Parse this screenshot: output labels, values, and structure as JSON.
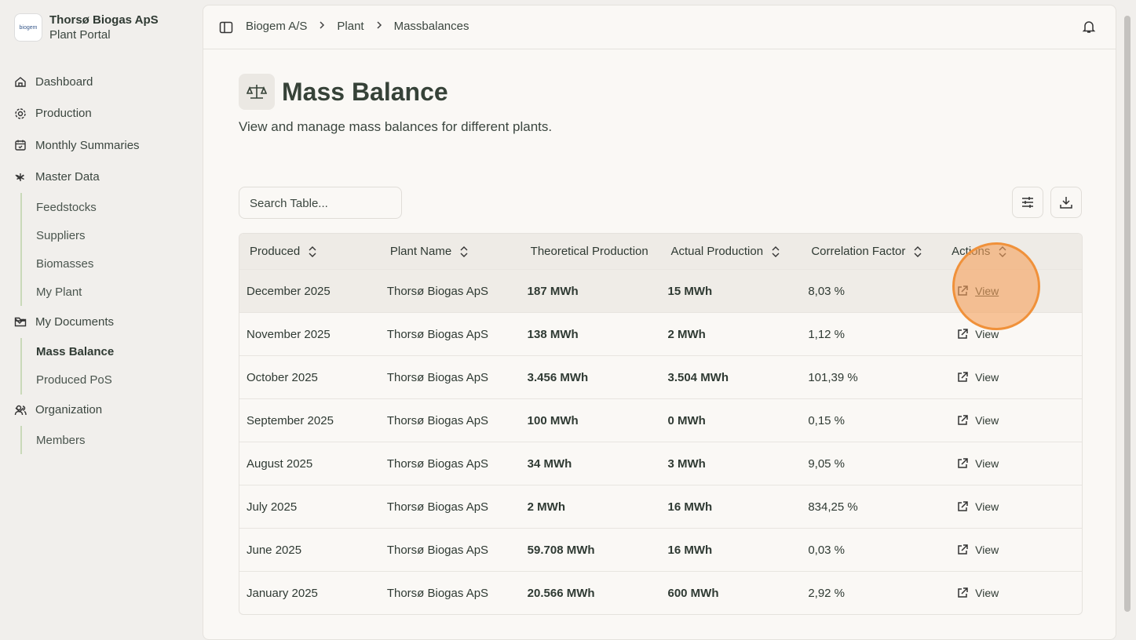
{
  "sidebar": {
    "logo": "biogem",
    "org_name": "Thorsø Biogas ApS",
    "portal_name": "Plant Portal",
    "nav": [
      {
        "label": "Dashboard",
        "icon": "home"
      },
      {
        "label": "Production",
        "icon": "gear"
      },
      {
        "label": "Monthly Summaries",
        "icon": "cal"
      },
      {
        "label": "Master Data",
        "icon": "star",
        "children": [
          "Feedstocks",
          "Suppliers",
          "Biomasses",
          "My Plant"
        ]
      },
      {
        "label": "My Documents",
        "icon": "folder",
        "children": [
          "Mass Balance",
          "Produced PoS"
        ],
        "active_child": 0
      },
      {
        "label": "Organization",
        "icon": "users",
        "children": [
          "Members"
        ]
      }
    ]
  },
  "breadcrumb": [
    "Biogem A/S",
    "Plant",
    "Massbalances"
  ],
  "page": {
    "title": "Mass Balance",
    "subtitle": "View and manage mass balances for different plants."
  },
  "search_placeholder": "Search Table...",
  "table": {
    "columns": [
      "Produced",
      "Plant Name",
      "Theoretical Production",
      "Actual Production",
      "Correlation Factor",
      "Actions"
    ],
    "rows": [
      [
        "December 2025",
        "Thorsø Biogas ApS",
        "187 MWh",
        "15 MWh",
        "8,03 %",
        "View"
      ],
      [
        "November 2025",
        "Thorsø Biogas ApS",
        "138 MWh",
        "2 MWh",
        "1,12 %",
        "View"
      ],
      [
        "October 2025",
        "Thorsø Biogas ApS",
        "3.456 MWh",
        "3.504 MWh",
        "101,39 %",
        "View"
      ],
      [
        "September 2025",
        "Thorsø Biogas ApS",
        "100 MWh",
        "0 MWh",
        "0,15 %",
        "View"
      ],
      [
        "August 2025",
        "Thorsø Biogas ApS",
        "34 MWh",
        "3 MWh",
        "9,05 %",
        "View"
      ],
      [
        "July 2025",
        "Thorsø Biogas ApS",
        "2 MWh",
        "16 MWh",
        "834,25 %",
        "View"
      ],
      [
        "June 2025",
        "Thorsø Biogas ApS",
        "59.708 MWh",
        "16 MWh",
        "0,03 %",
        "View"
      ],
      [
        "January 2025",
        "Thorsø Biogas ApS",
        "20.566 MWh",
        "600 MWh",
        "2,92 %",
        "View"
      ]
    ]
  }
}
